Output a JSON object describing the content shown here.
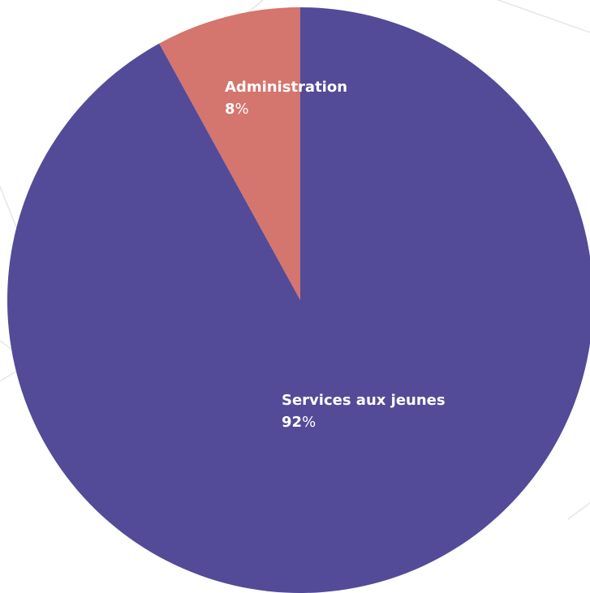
{
  "chart_data": {
    "type": "pie",
    "slices": [
      {
        "label": "Administration",
        "value": 8,
        "value_text": "8",
        "unit": "%",
        "color": "#D4756E"
      },
      {
        "label": "Services aux jeunes",
        "value": 92,
        "value_text": "92",
        "unit": "%",
        "color": "#534B97"
      }
    ],
    "title": "",
    "legend": "none",
    "start_angle": "top, clockwise"
  },
  "background": {
    "color": "#FFFFFF",
    "line_color": "#E6E6E6"
  }
}
